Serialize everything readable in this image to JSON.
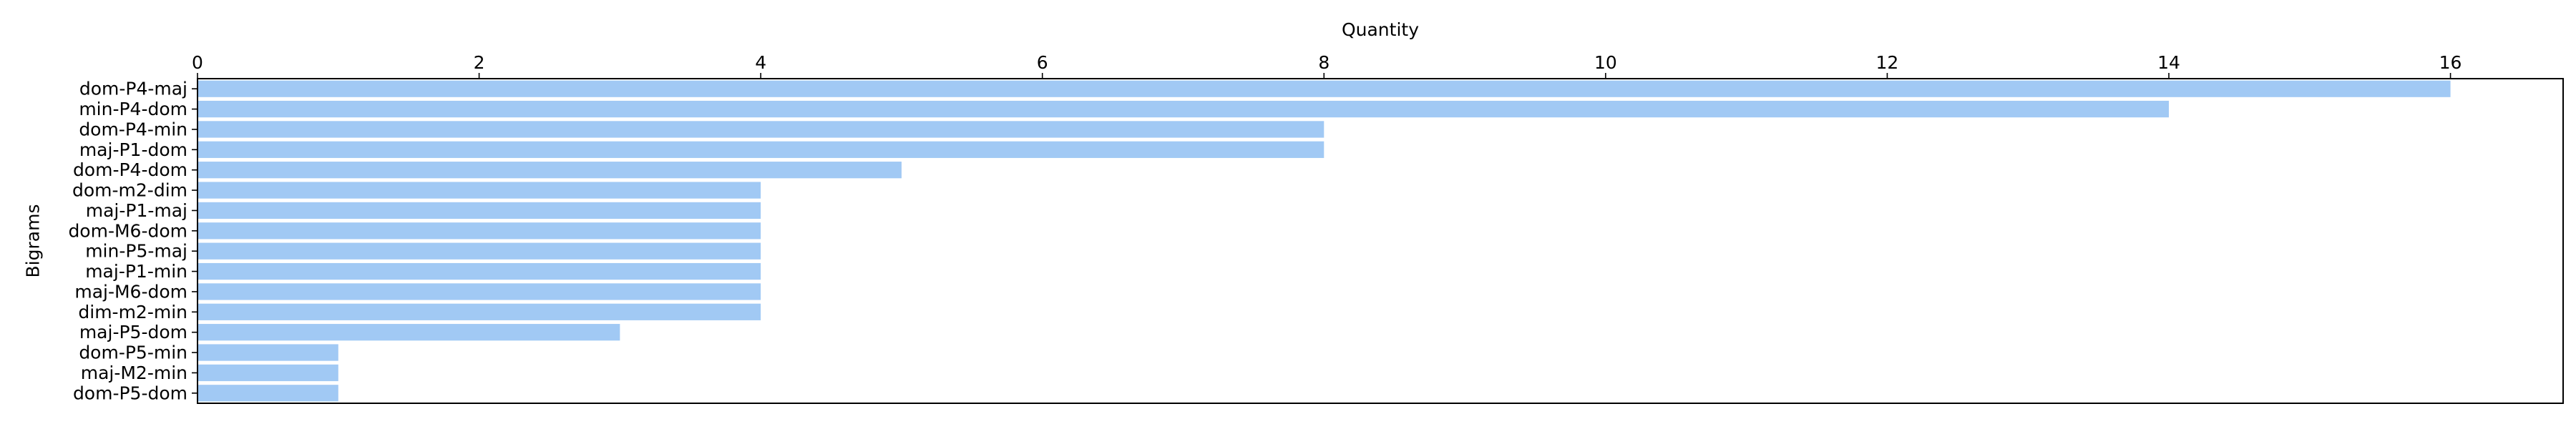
{
  "chart_data": {
    "type": "bar",
    "orientation": "horizontal",
    "title": "",
    "xlabel": "Quantity",
    "ylabel": "Bigrams",
    "xlabel_position": "top",
    "x_ticks": [
      "0",
      "2",
      "4",
      "6",
      "8",
      "10",
      "12",
      "14",
      "16"
    ],
    "xlim": [
      0,
      16.8
    ],
    "grid": false,
    "bar_color": "#a1c9f4",
    "categories": [
      "dom-P4-maj",
      "min-P4-dom",
      "dom-P4-min",
      "maj-P1-dom",
      "dom-P4-dom",
      "dom-m2-dim",
      "maj-P1-maj",
      "dom-M6-dom",
      "min-P5-maj",
      "maj-P1-min",
      "maj-M6-dom",
      "dim-m2-min",
      "maj-P5-dom",
      "dom-P5-min",
      "maj-M2-min",
      "dom-P5-dom"
    ],
    "values": [
      16,
      14,
      8,
      8,
      5,
      4,
      4,
      4,
      4,
      4,
      4,
      4,
      3,
      1,
      1,
      1
    ]
  }
}
